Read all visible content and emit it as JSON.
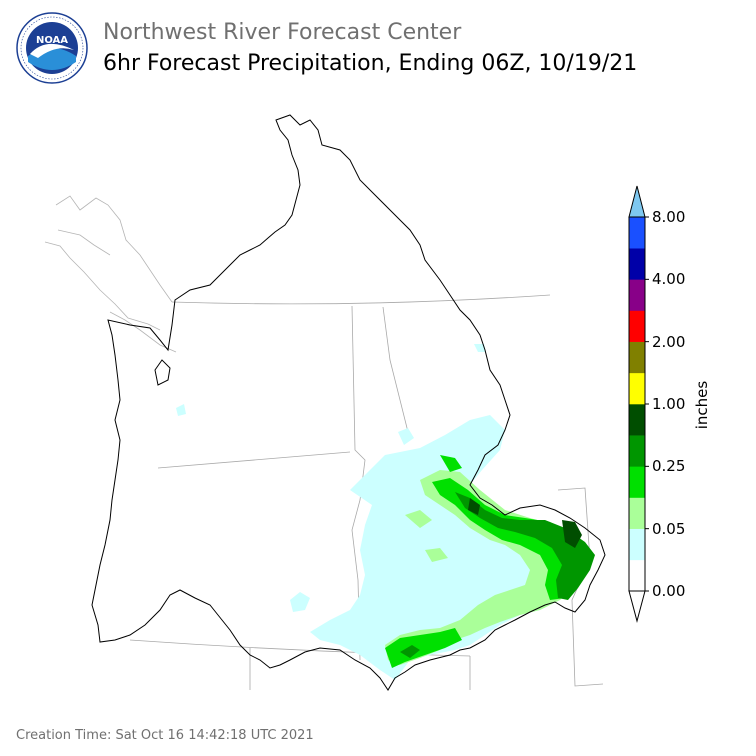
{
  "header": {
    "org": "Northwest River Forecast Center",
    "product": "6hr Forecast Precipitation, Ending 06Z, 10/19/21"
  },
  "logo": {
    "text": "NOAA",
    "ring_text": "NATIONAL OCEANIC AND ATMOSPHERIC ADMINISTRATION · U.S. DEPARTMENT OF COMMERCE",
    "icon": "noaa-logo-icon"
  },
  "legend": {
    "unit": "inches",
    "labels": [
      "0.00",
      "0.05",
      "0.25",
      "1.00",
      "2.00",
      "4.00",
      "8.00"
    ],
    "bins": [
      {
        "color": "#ffffff"
      },
      {
        "color": "#ccffff"
      },
      {
        "color": "#aaff99"
      },
      {
        "color": "#00e000"
      },
      {
        "color": "#009600"
      },
      {
        "color": "#004e00"
      },
      {
        "color": "#ffff00"
      },
      {
        "color": "#808000"
      },
      {
        "color": "#ff0000"
      },
      {
        "color": "#880088"
      },
      {
        "color": "#0000a8"
      },
      {
        "color": "#1a50ff"
      }
    ],
    "under_color": "#ffffff",
    "over_color": "#7ec8f0"
  },
  "footer": {
    "creation_time": "Creation Time: Sat Oct 16 14:42:18 UTC 2021"
  },
  "colors": {
    "basin_outline": "#000000",
    "state_lines": "#a0a0a0",
    "coast_gray": "#b0b0b0",
    "title_gray": "#707070"
  }
}
